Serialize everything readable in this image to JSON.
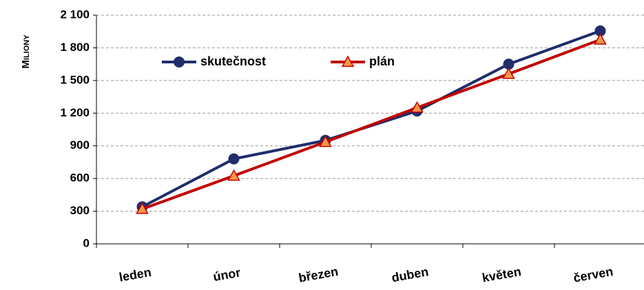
{
  "chart_data": {
    "type": "line",
    "y_label": "Miliony",
    "categories": [
      "leden",
      "únor",
      "březen",
      "duben",
      "květen",
      "červen"
    ],
    "series": [
      {
        "name": "skutečnost",
        "color": "#1f2d6b",
        "values": [
          340,
          780,
          950,
          1220,
          1650,
          1955
        ]
      },
      {
        "name": "plán",
        "color": "#c00000",
        "marker_color": "#f79646",
        "values": [
          320,
          625,
          935,
          1250,
          1560,
          1875
        ]
      }
    ],
    "ylim": [
      0,
      2100
    ],
    "yticks": [
      0,
      300,
      600,
      900,
      {
        "value": 1200,
        "label": "1 200"
      },
      {
        "value": 1500,
        "label": "1 500"
      },
      {
        "value": 1800,
        "label": "1 800"
      },
      {
        "value": 2100,
        "label": "2 100"
      }
    ],
    "grid": true,
    "legend": "upper left"
  }
}
